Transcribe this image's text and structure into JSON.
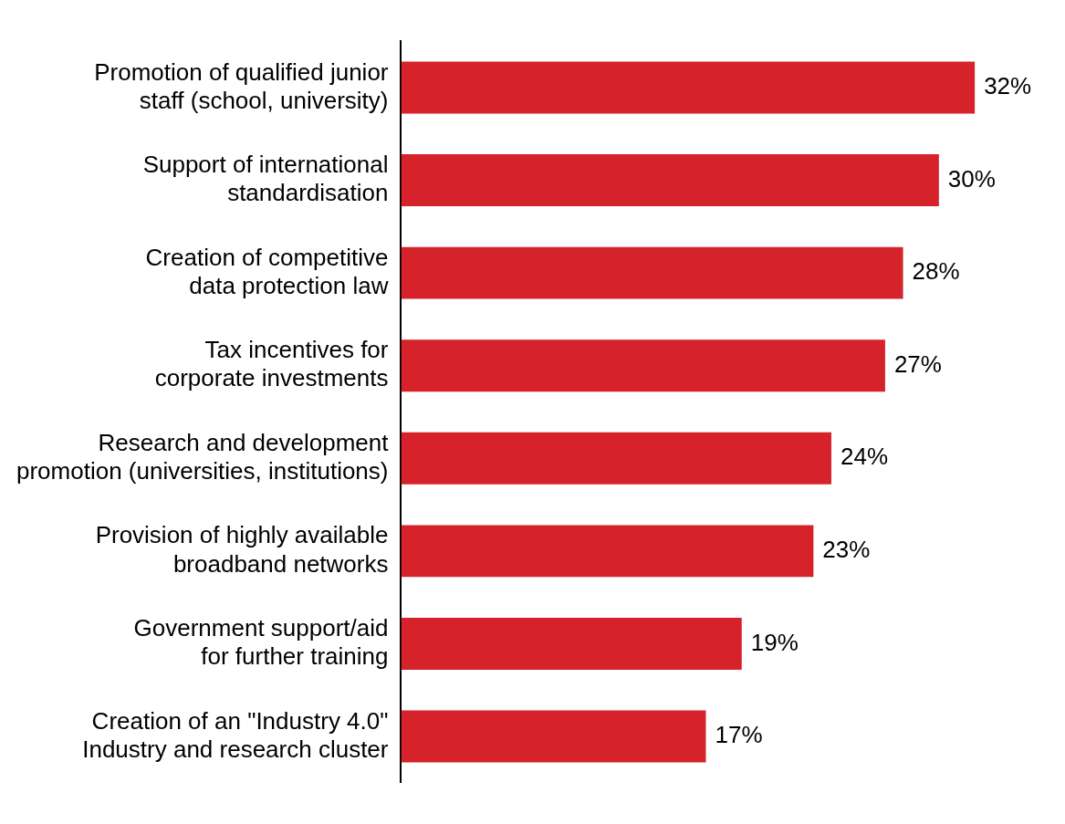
{
  "chart_data": {
    "type": "bar",
    "orientation": "horizontal",
    "categories": [
      "Promotion of qualified junior\nstaff (school, university)",
      "Support of international\nstandardisation",
      "Creation of competitive\ndata protection law",
      "Tax incentives for\ncorporate investments",
      "Research and development\npromotion (universities, institutions)",
      "Provision of highly available\nbroadband networks",
      "Government support/aid\nfor further training",
      "Creation of an \"Industry 4.0\"\nIndustry and research cluster"
    ],
    "values": [
      32,
      30,
      28,
      27,
      24,
      23,
      19,
      17
    ],
    "value_labels": [
      "32%",
      "30%",
      "28%",
      "27%",
      "24%",
      "23%",
      "19%",
      "17%"
    ],
    "color": "#d6232b",
    "tick_labels": "y"
  }
}
